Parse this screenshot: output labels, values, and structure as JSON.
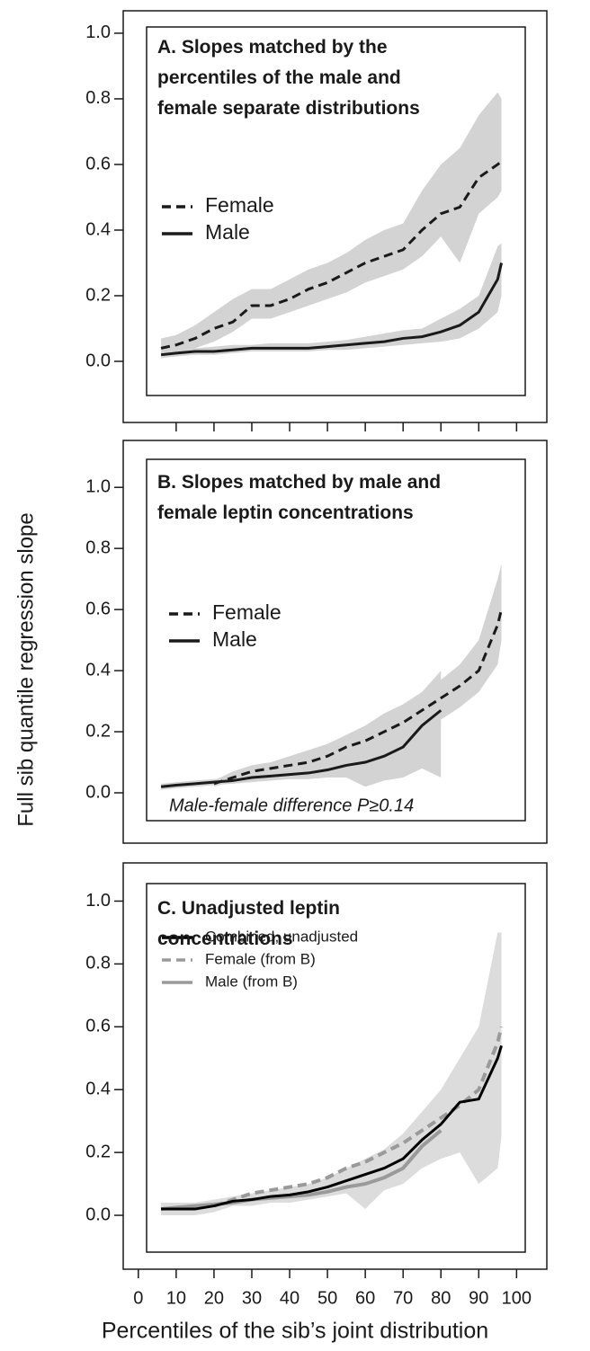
{
  "chart_data": [
    {
      "type": "line",
      "title": "A. Slopes matched by the percentiles of the male and female separate distributions",
      "x": [
        6,
        10,
        15,
        20,
        25,
        30,
        35,
        40,
        45,
        50,
        55,
        60,
        65,
        70,
        75,
        80,
        85,
        90,
        95,
        96
      ],
      "xlim": [
        -4,
        108
      ],
      "xticks": [
        10,
        20,
        30,
        40,
        50,
        60,
        70,
        80,
        90,
        100
      ],
      "xtick_labels": false,
      "ylim": [
        -0.1,
        1.03
      ],
      "yticks": [
        {
          "value": 0,
          "label": "0.0"
        },
        0.2,
        0.4,
        0.6,
        0.8,
        {
          "value": 1,
          "label": "1.0"
        }
      ],
      "band_color": "#d3d3d3",
      "series": [
        {
          "name": "Female",
          "color": "#1a1a1a",
          "dash": true,
          "values": [
            0.04,
            0.05,
            0.07,
            0.1,
            0.12,
            0.17,
            0.17,
            0.19,
            0.22,
            0.24,
            0.27,
            0.3,
            0.32,
            0.34,
            0.4,
            0.45,
            0.47,
            0.56,
            0.6,
            0.61
          ],
          "upper": [
            0.07,
            0.08,
            0.11,
            0.15,
            0.19,
            0.22,
            0.22,
            0.25,
            0.28,
            0.3,
            0.33,
            0.37,
            0.4,
            0.42,
            0.52,
            0.6,
            0.65,
            0.75,
            0.82,
            0.8
          ],
          "lower": [
            0.02,
            0.03,
            0.04,
            0.06,
            0.09,
            0.13,
            0.13,
            0.15,
            0.17,
            0.19,
            0.21,
            0.24,
            0.26,
            0.28,
            0.32,
            0.38,
            0.3,
            0.45,
            0.5,
            0.52
          ]
        },
        {
          "name": "Male",
          "color": "#1a1a1a",
          "dash": false,
          "values": [
            0.02,
            0.025,
            0.03,
            0.03,
            0.035,
            0.04,
            0.04,
            0.04,
            0.04,
            0.045,
            0.05,
            0.055,
            0.06,
            0.07,
            0.075,
            0.09,
            0.11,
            0.15,
            0.25,
            0.3
          ],
          "upper": [
            0.03,
            0.035,
            0.04,
            0.045,
            0.05,
            0.05,
            0.055,
            0.055,
            0.055,
            0.06,
            0.065,
            0.075,
            0.085,
            0.095,
            0.1,
            0.13,
            0.16,
            0.2,
            0.35,
            0.36
          ],
          "lower": [
            0.01,
            0.015,
            0.02,
            0.02,
            0.025,
            0.03,
            0.03,
            0.03,
            0.03,
            0.035,
            0.035,
            0.04,
            0.045,
            0.05,
            0.055,
            0.06,
            0.07,
            0.1,
            0.15,
            0.2
          ]
        }
      ]
    },
    {
      "type": "line",
      "title": "B. Slopes matched by male and female leptin concentrations",
      "ylabel": "Full sib quantile regression slope",
      "annotation": "Male-female difference P≥0.14",
      "x": [
        6,
        10,
        15,
        20,
        25,
        30,
        35,
        40,
        45,
        50,
        55,
        60,
        65,
        70,
        75,
        80,
        85,
        90,
        95,
        96
      ],
      "xlim": [
        -4,
        108
      ],
      "ylim": [
        -0.1,
        1.03
      ],
      "yticks": [
        {
          "value": 0,
          "label": "0.0"
        },
        0.2,
        0.4,
        0.6,
        0.8,
        {
          "value": 1,
          "label": "1.0"
        }
      ],
      "band_color": "#d3d3d3",
      "series": [
        {
          "name": "Female",
          "color": "#1a1a1a",
          "dash": true,
          "values": [
            null,
            null,
            null,
            0.03,
            0.05,
            0.07,
            0.08,
            0.09,
            0.1,
            0.12,
            0.15,
            0.17,
            0.2,
            0.23,
            0.27,
            0.31,
            0.35,
            0.4,
            0.55,
            0.6
          ],
          "upper": [
            null,
            null,
            null,
            0.04,
            0.07,
            0.09,
            0.1,
            0.12,
            0.14,
            0.16,
            0.19,
            0.22,
            0.26,
            0.29,
            0.33,
            0.37,
            0.42,
            0.5,
            0.7,
            0.75
          ],
          "lower": [
            null,
            null,
            null,
            0.02,
            0.04,
            0.05,
            0.06,
            0.07,
            0.08,
            0.09,
            0.11,
            0.13,
            0.15,
            0.17,
            0.2,
            0.24,
            0.28,
            0.33,
            0.42,
            0.5
          ]
        },
        {
          "name": "Male",
          "color": "#1a1a1a",
          "dash": false,
          "values": [
            0.02,
            0.025,
            0.03,
            0.035,
            0.04,
            0.05,
            0.055,
            0.06,
            0.065,
            0.075,
            0.09,
            0.1,
            0.12,
            0.15,
            0.22,
            0.27,
            null,
            null,
            null,
            null
          ],
          "upper": [
            0.03,
            0.035,
            0.04,
            0.045,
            0.05,
            0.065,
            0.07,
            0.075,
            0.08,
            0.1,
            0.13,
            0.16,
            0.2,
            0.26,
            0.33,
            0.4,
            null,
            null,
            null,
            null
          ],
          "lower": [
            0.01,
            0.015,
            0.02,
            0.025,
            0.03,
            0.035,
            0.04,
            0.045,
            0.045,
            0.05,
            0.05,
            0.02,
            0.04,
            0.05,
            0.08,
            0.05,
            null,
            null,
            null,
            null
          ]
        }
      ]
    },
    {
      "type": "line",
      "title": "C. Unadjusted leptin concentrations",
      "xlabel": "Percentiles of the sib’s joint distribution",
      "x": [
        6,
        10,
        15,
        20,
        25,
        30,
        35,
        40,
        45,
        50,
        55,
        60,
        65,
        70,
        75,
        80,
        85,
        90,
        95,
        96
      ],
      "xlim": [
        -4,
        108
      ],
      "xticks": [
        0,
        10,
        20,
        30,
        40,
        50,
        60,
        70,
        80,
        90,
        100
      ],
      "xtick_labels": true,
      "ylim": [
        -0.1,
        1.03
      ],
      "yticks": [
        {
          "value": 0,
          "label": "0.0"
        },
        0.2,
        0.4,
        0.6,
        0.8,
        {
          "value": 1,
          "label": "1.0"
        }
      ],
      "band_color": "#dcdcdc",
      "series": [
        {
          "name": "Combined, unadjusted",
          "color": "#000000",
          "dash": false,
          "values": [
            0.02,
            0.02,
            0.02,
            0.03,
            0.045,
            0.05,
            0.06,
            0.065,
            0.075,
            0.09,
            0.11,
            0.13,
            0.15,
            0.18,
            0.24,
            0.29,
            0.36,
            0.37,
            0.5,
            0.54
          ],
          "upper": [
            0.04,
            0.04,
            0.04,
            0.05,
            0.06,
            0.07,
            0.08,
            0.09,
            0.1,
            0.12,
            0.15,
            0.18,
            0.21,
            0.26,
            0.33,
            0.4,
            0.5,
            0.6,
            0.9,
            0.9
          ],
          "lower": [
            0,
            0,
            0,
            0.01,
            0.03,
            0.03,
            0.04,
            0.04,
            0.05,
            0.06,
            0.07,
            0.02,
            0.08,
            0.1,
            0.15,
            0.18,
            0.2,
            0.1,
            0.15,
            0.25
          ]
        },
        {
          "name": "Female (from B)",
          "color": "#9a9a9a",
          "dash": true,
          "values": [
            null,
            null,
            null,
            0.03,
            0.05,
            0.07,
            0.08,
            0.09,
            0.1,
            0.12,
            0.15,
            0.17,
            0.2,
            0.23,
            0.27,
            0.31,
            0.35,
            0.4,
            0.55,
            0.6
          ]
        },
        {
          "name": "Male (from B)",
          "color": "#9a9a9a",
          "dash": false,
          "values": [
            0.02,
            0.025,
            0.03,
            0.035,
            0.04,
            0.05,
            0.055,
            0.06,
            0.065,
            0.075,
            0.09,
            0.1,
            0.12,
            0.15,
            0.22,
            0.27,
            null,
            null,
            null,
            null
          ]
        }
      ]
    }
  ]
}
